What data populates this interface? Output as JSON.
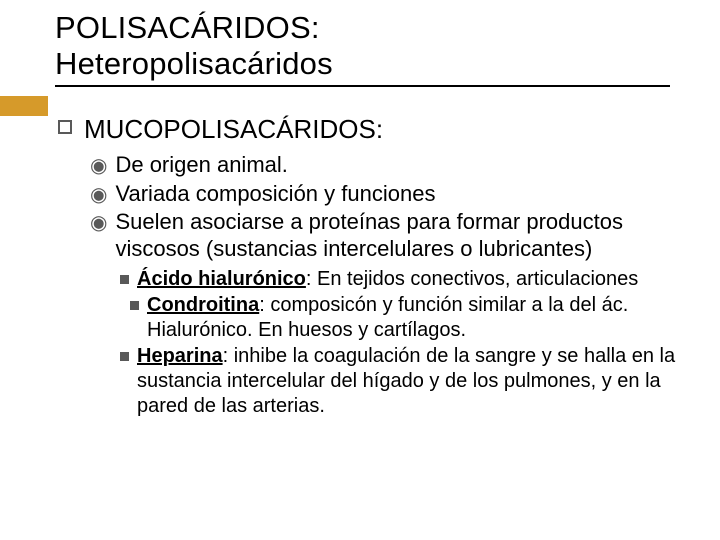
{
  "colors": {
    "background": "#ffffff",
    "text": "#000000",
    "bullet": "#595959",
    "underline": "#000000",
    "accent": "#d69a2a"
  },
  "typography": {
    "family": "Arial",
    "title_size": 31,
    "l1_size": 26,
    "l2_size": 22,
    "l3_size": 20
  },
  "title": {
    "line1": "POLISACÁRIDOS:",
    "line2": "Heteropolisacáridos"
  },
  "l1": {
    "text": "MUCOPOLISACÁRIDOS:"
  },
  "l2": [
    {
      "text": "De origen animal."
    },
    {
      "text": "Variada composición y funciones"
    },
    {
      "text": "Suelen asociarse a proteínas para formar productos viscosos (sustancias intercelulares o lubricantes)"
    }
  ],
  "l3": [
    {
      "bold": "Ácido hialurónico",
      "rest": ": En tejidos conectivos, articulaciones",
      "indent": false
    },
    {
      "bold": "Condroitina",
      "rest": ": composicón y función similar a la del ác. Hialurónico. En huesos y cartílagos.",
      "indent": true
    },
    {
      "bold": "Heparina",
      "rest": ": inhibe la coagulación de la sangre y se halla en la sustancia intercelular del hígado y de los pulmones, y en la pared de las arterias.",
      "indent": false
    }
  ]
}
